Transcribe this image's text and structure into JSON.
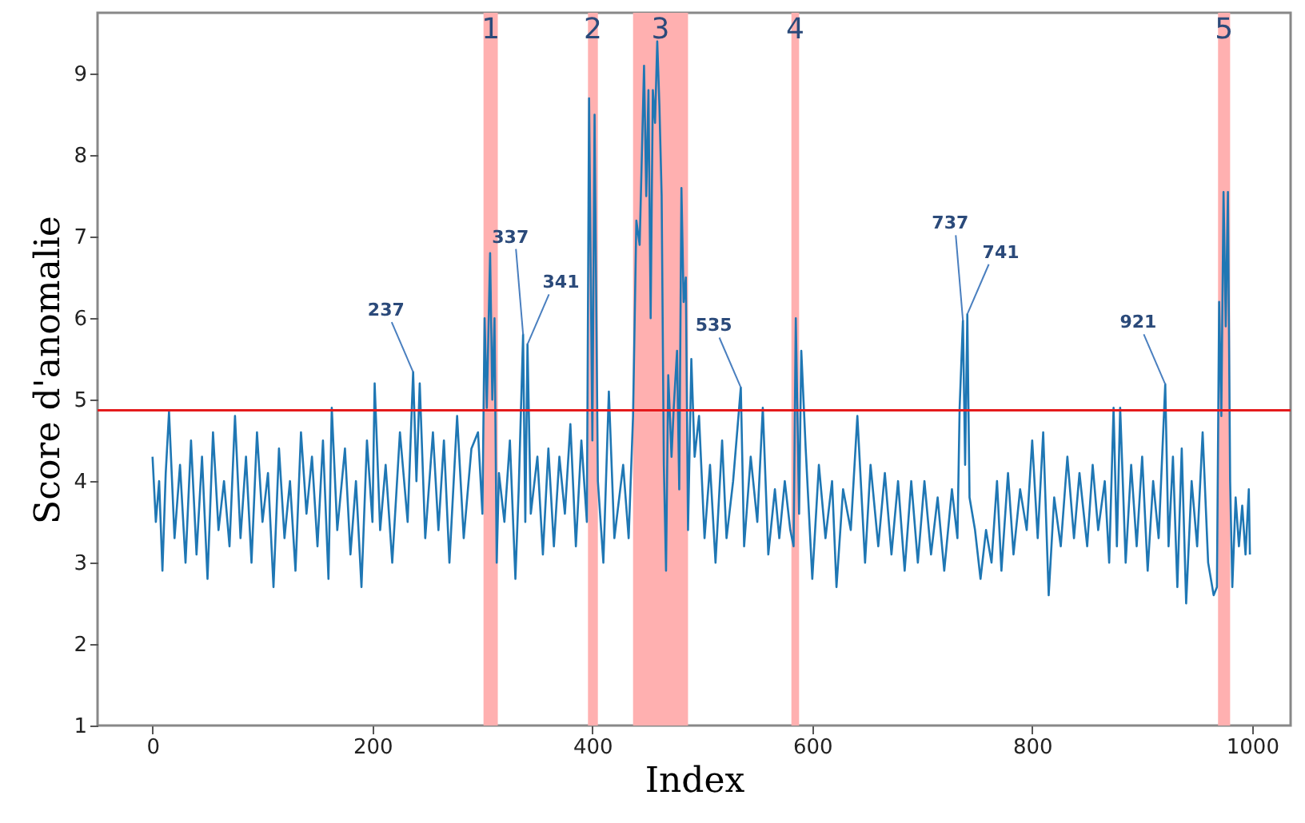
{
  "chart_data": {
    "type": "line",
    "xlabel": "Index",
    "ylabel": "Score d'anomalie",
    "xlim": [
      -50,
      1035
    ],
    "ylim": [
      1,
      9.75
    ],
    "xticks": [
      0,
      200,
      400,
      600,
      800,
      1000
    ],
    "yticks": [
      1,
      2,
      3,
      4,
      5,
      6,
      7,
      8,
      9
    ],
    "grid": false,
    "line_style": "solid",
    "series": [
      {
        "color": "#1f77b4",
        "x": [
          0,
          3,
          6,
          9,
          12,
          15,
          20,
          25,
          30,
          35,
          40,
          45,
          50,
          55,
          60,
          65,
          70,
          75,
          80,
          85,
          90,
          95,
          100,
          105,
          110,
          115,
          120,
          125,
          130,
          135,
          140,
          145,
          150,
          155,
          160,
          163,
          168,
          175,
          180,
          185,
          190,
          195,
          200,
          202,
          207,
          212,
          218,
          225,
          232,
          237,
          240,
          243,
          248,
          255,
          260,
          265,
          270,
          277,
          283,
          290,
          296,
          300,
          302,
          304,
          307,
          309,
          311,
          313,
          315,
          320,
          325,
          330,
          333,
          337,
          339,
          341,
          344,
          350,
          355,
          360,
          365,
          370,
          375,
          380,
          385,
          390,
          395,
          397,
          400,
          402,
          405,
          410,
          415,
          420,
          428,
          433,
          437,
          440,
          443,
          447,
          449,
          451,
          453,
          455,
          457,
          459,
          461,
          463,
          465,
          467,
          469,
          472,
          474,
          477,
          479,
          481,
          483,
          485,
          487,
          490,
          493,
          497,
          502,
          507,
          512,
          518,
          522,
          528,
          535,
          538,
          544,
          550,
          555,
          560,
          566,
          570,
          575,
          580,
          583,
          585,
          588,
          590,
          594,
          600,
          606,
          612,
          618,
          622,
          628,
          635,
          641,
          648,
          653,
          660,
          666,
          672,
          678,
          684,
          690,
          696,
          702,
          708,
          714,
          720,
          727,
          732,
          734,
          737,
          739,
          741,
          743,
          748,
          753,
          758,
          763,
          768,
          772,
          778,
          783,
          789,
          795,
          800,
          805,
          810,
          815,
          820,
          826,
          832,
          838,
          843,
          850,
          855,
          860,
          866,
          870,
          874,
          877,
          880,
          885,
          890,
          895,
          900,
          905,
          910,
          915,
          921,
          924,
          928,
          932,
          936,
          940,
          945,
          950,
          955,
          960,
          965,
          968,
          970,
          972,
          974,
          976,
          978,
          980,
          982,
          985,
          988,
          991,
          994,
          997,
          998
        ],
        "values": [
          4.3,
          3.5,
          4.0,
          2.9,
          4.1,
          4.85,
          3.3,
          4.2,
          3.0,
          4.5,
          3.1,
          4.3,
          2.8,
          4.6,
          3.4,
          4.0,
          3.2,
          4.8,
          3.3,
          4.3,
          3.0,
          4.6,
          3.5,
          4.1,
          2.7,
          4.4,
          3.3,
          4.0,
          2.9,
          4.6,
          3.6,
          4.3,
          3.2,
          4.5,
          2.8,
          4.9,
          3.4,
          4.4,
          3.1,
          4.0,
          2.7,
          4.5,
          3.5,
          5.2,
          3.4,
          4.2,
          3.0,
          4.6,
          3.5,
          5.34,
          4.0,
          5.2,
          3.3,
          4.6,
          3.4,
          4.5,
          3.0,
          4.8,
          3.3,
          4.4,
          4.6,
          3.6,
          6.0,
          4.9,
          6.8,
          5.0,
          6.0,
          3.0,
          4.1,
          3.5,
          4.5,
          2.8,
          3.9,
          5.8,
          3.5,
          5.68,
          3.6,
          4.3,
          3.1,
          4.4,
          3.2,
          4.3,
          3.6,
          4.7,
          3.2,
          4.5,
          3.5,
          8.7,
          4.5,
          8.5,
          4.0,
          3.0,
          5.1,
          3.3,
          4.2,
          3.3,
          4.8,
          7.2,
          6.9,
          9.1,
          7.5,
          8.8,
          6.0,
          8.8,
          8.4,
          9.4,
          8.6,
          7.5,
          4.2,
          2.9,
          5.3,
          4.3,
          4.9,
          5.6,
          3.9,
          7.6,
          6.2,
          6.5,
          3.4,
          5.5,
          4.3,
          4.8,
          3.3,
          4.2,
          3.0,
          4.5,
          3.3,
          4.0,
          5.15,
          3.2,
          4.3,
          3.5,
          4.9,
          3.1,
          3.9,
          3.3,
          4.0,
          3.4,
          3.2,
          6.0,
          3.6,
          5.6,
          4.4,
          2.8,
          4.2,
          3.3,
          4.0,
          2.7,
          3.9,
          3.4,
          4.8,
          3.0,
          4.2,
          3.2,
          4.1,
          3.1,
          4.0,
          2.9,
          4.0,
          3.0,
          4.0,
          3.1,
          3.8,
          2.9,
          3.9,
          3.3,
          4.9,
          5.97,
          4.2,
          6.05,
          3.8,
          3.4,
          2.8,
          3.4,
          3.0,
          4.0,
          2.9,
          4.1,
          3.1,
          3.9,
          3.4,
          4.5,
          3.3,
          4.6,
          2.6,
          3.8,
          3.2,
          4.3,
          3.3,
          4.1,
          3.2,
          4.2,
          3.4,
          4.0,
          3.0,
          4.9,
          3.2,
          4.9,
          3.0,
          4.2,
          3.2,
          4.3,
          2.9,
          4.0,
          3.3,
          5.19,
          3.2,
          4.3,
          2.7,
          4.4,
          2.5,
          4.0,
          3.2,
          4.6,
          3.0,
          2.6,
          2.7,
          6.2,
          4.8,
          7.55,
          5.9,
          7.55,
          4.0,
          2.7,
          3.8,
          3.2,
          3.7,
          3.1,
          3.9,
          3.1
        ]
      }
    ],
    "ref_lines": [
      {
        "axis": "y",
        "value": 4.87,
        "color": "#e41a1c"
      }
    ],
    "bands": [
      {
        "axis": "x",
        "from": 301,
        "to": 314,
        "label": "1",
        "color": "#ffb0b0"
      },
      {
        "axis": "x",
        "from": 396,
        "to": 405,
        "label": "2",
        "color": "#ffb0b0"
      },
      {
        "axis": "x",
        "from": 437,
        "to": 487,
        "label": "3",
        "color": "#ffb0b0"
      },
      {
        "axis": "x",
        "from": 581,
        "to": 588,
        "label": "4",
        "color": "#ffb0b0"
      },
      {
        "axis": "x",
        "from": 969,
        "to": 980,
        "label": "5",
        "color": "#ffb0b0"
      }
    ],
    "annotations": [
      {
        "text": "237",
        "x": 237,
        "y": 5.34
      },
      {
        "text": "337",
        "x": 337,
        "y": 5.8
      },
      {
        "text": "341",
        "x": 341,
        "y": 5.68
      },
      {
        "text": "535",
        "x": 535,
        "y": 5.15
      },
      {
        "text": "737",
        "x": 737,
        "y": 5.97
      },
      {
        "text": "741",
        "x": 741,
        "y": 6.05
      },
      {
        "text": "921",
        "x": 921,
        "y": 5.19
      }
    ]
  }
}
